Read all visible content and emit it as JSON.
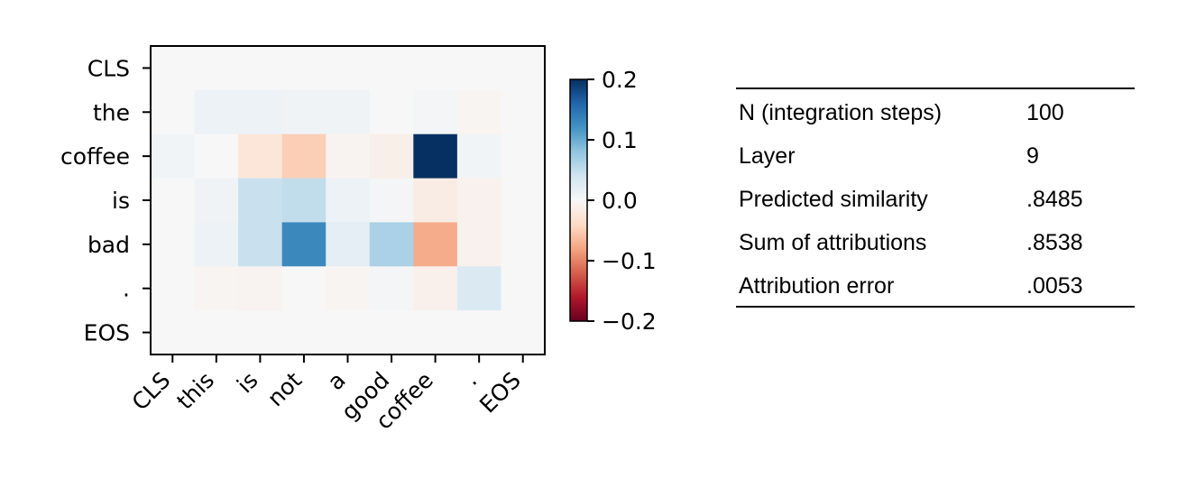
{
  "chart_data": {
    "type": "heatmap",
    "x_tokens": [
      "CLS",
      "this",
      "is",
      "not",
      "a",
      "good",
      "coffee",
      ".",
      "EOS"
    ],
    "y_tokens": [
      "CLS",
      "the",
      "coffee",
      "is",
      "bad",
      ".",
      "EOS"
    ],
    "values": [
      [
        0,
        0,
        0,
        0,
        0,
        0,
        0,
        0,
        0
      ],
      [
        0,
        0.012,
        0.012,
        0.008,
        0.008,
        0,
        0.004,
        -0.004,
        0
      ],
      [
        0.006,
        0,
        -0.025,
        -0.05,
        -0.006,
        -0.012,
        0.2,
        0.006,
        0
      ],
      [
        0,
        0.008,
        0.045,
        0.05,
        0.012,
        0.004,
        -0.016,
        -0.008,
        0
      ],
      [
        0,
        0.012,
        0.045,
        0.13,
        0.02,
        0.065,
        -0.075,
        -0.008,
        0
      ],
      [
        0,
        -0.004,
        -0.006,
        0,
        -0.004,
        0.004,
        -0.01,
        0.03,
        0
      ],
      [
        0,
        0,
        0,
        0,
        0,
        0,
        0,
        0,
        0
      ]
    ],
    "colorbar": {
      "vmin": -0.2,
      "vmax": 0.2,
      "ticks": [
        "0.2",
        "0.1",
        "0.0",
        "−0.1",
        "−0.2"
      ],
      "colormap": "RdBu"
    }
  },
  "stats": {
    "rows": [
      {
        "label": "N (integration steps)",
        "value": "100"
      },
      {
        "label": "Layer",
        "value": "9"
      },
      {
        "label": "Predicted similarity",
        "value": ".8485"
      },
      {
        "label": "Sum of attributions",
        "value": ".8538"
      },
      {
        "label": "Attribution error",
        "value": ".0053"
      }
    ]
  }
}
